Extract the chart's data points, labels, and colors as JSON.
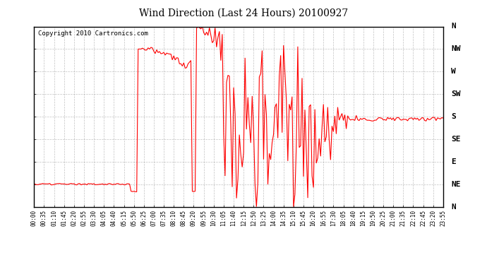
{
  "title": "Wind Direction (Last 24 Hours) 20100927",
  "copyright": "Copyright 2010 Cartronics.com",
  "line_color": "#ff0000",
  "bg_color": "#ffffff",
  "grid_color": "#999999",
  "ytick_labels": [
    "N",
    "NW",
    "W",
    "SW",
    "S",
    "SE",
    "E",
    "NE",
    "N"
  ],
  "ytick_values": [
    360,
    315,
    270,
    225,
    180,
    135,
    90,
    45,
    0
  ],
  "ylim": [
    0,
    360
  ],
  "xtick_labels": [
    "00:00",
    "00:35",
    "01:10",
    "01:45",
    "02:20",
    "02:55",
    "03:30",
    "04:05",
    "04:40",
    "05:15",
    "05:50",
    "06:25",
    "07:00",
    "07:35",
    "08:10",
    "08:45",
    "09:20",
    "09:55",
    "10:30",
    "11:05",
    "11:40",
    "12:15",
    "12:50",
    "13:25",
    "14:00",
    "14:35",
    "15:10",
    "15:45",
    "16:20",
    "16:55",
    "17:30",
    "18:05",
    "18:40",
    "19:15",
    "19:50",
    "20:25",
    "21:00",
    "21:35",
    "22:10",
    "22:45",
    "23:20",
    "23:55"
  ],
  "figsize": [
    6.9,
    3.75
  ],
  "dpi": 100
}
